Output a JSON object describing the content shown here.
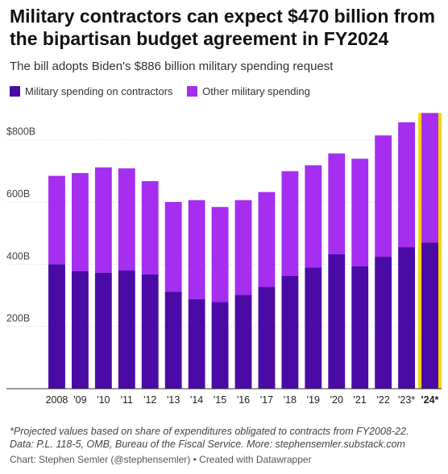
{
  "title": "Military contractors can expect $470 billion from the bipartisan budget agreement in FY2024",
  "subtitle": "The bill adopts Biden's $886 billion military spending request",
  "legend": {
    "contractors": "Military spending on contractors",
    "other": "Other military spending"
  },
  "colors": {
    "contractors": "#4a0aa6",
    "other": "#a52ef0",
    "highlight": "#f5d400",
    "grid": "#d9d9d9",
    "axis": "#333333"
  },
  "notes": {
    "line1": "*Projected values based on share of expenditures obligated to contracts from FY2008-22.",
    "line2": "Data: P.L. 118-5, OMB, Bureau of the Fiscal Service. More: stephensemler.substack.com"
  },
  "credit": "Chart: Stephen Semler (@stephensemler) • Created with Datawrapper",
  "chart_data": {
    "type": "bar",
    "stacked": true,
    "categories": [
      "2008",
      "'09",
      "'10",
      "'11",
      "'12",
      "'13",
      "'14",
      "'15",
      "'16",
      "'17",
      "'18",
      "'19",
      "'20",
      "'21",
      "'22",
      "'23*",
      "'24*"
    ],
    "series": [
      {
        "name": "Military spending on contractors",
        "values": [
          400,
          378,
          373,
          380,
          368,
          312,
          288,
          278,
          302,
          327,
          363,
          390,
          432,
          394,
          424,
          455,
          470
        ]
      },
      {
        "name": "Other military spending",
        "values": [
          284,
          315,
          338,
          328,
          299,
          288,
          318,
          306,
          304,
          305,
          336,
          328,
          324,
          345,
          390,
          401,
          416
        ]
      }
    ],
    "totals": [
      684,
      693,
      711,
      708,
      667,
      600,
      606,
      584,
      606,
      632,
      699,
      718,
      756,
      739,
      814,
      856,
      886
    ],
    "yticks": [
      200,
      400,
      600,
      800
    ],
    "ytick_labels": [
      "200B",
      "400B",
      "600B",
      "$800B"
    ],
    "ylim": [
      0,
      900
    ],
    "highlight_category": "'24*",
    "grid": true
  }
}
